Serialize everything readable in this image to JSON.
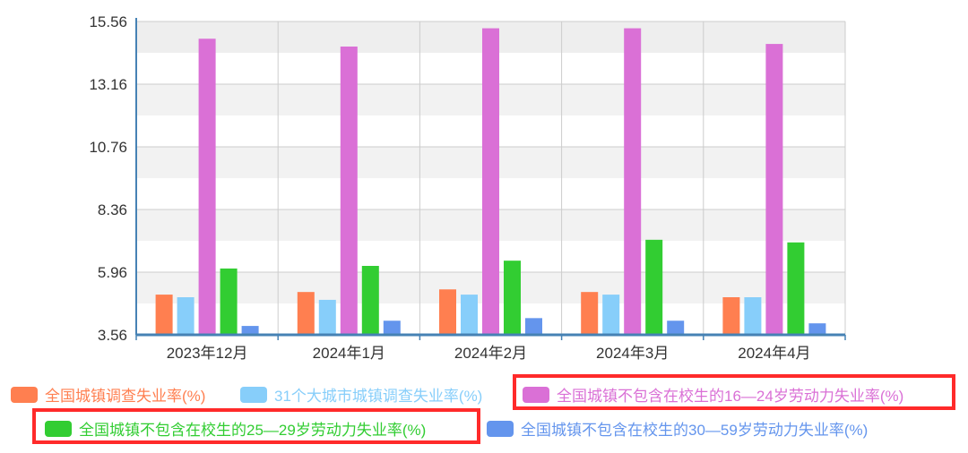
{
  "chart_data": {
    "type": "bar",
    "categories": [
      "2023年12月",
      "2024年1月",
      "2024年2月",
      "2024年3月",
      "2024年4月"
    ],
    "series": [
      {
        "name": "全国城镇调查失业率(%)",
        "color": "#ff7f50",
        "values": [
          5.1,
          5.2,
          5.3,
          5.2,
          5.0
        ]
      },
      {
        "name": "31个大城市城镇调查失业率(%)",
        "color": "#87cefa",
        "values": [
          5.0,
          4.9,
          5.1,
          5.1,
          5.0
        ]
      },
      {
        "name": "全国城镇不包含在校生的16—24岁劳动力失业率(%)",
        "color": "#da70d6",
        "values": [
          14.9,
          14.6,
          15.3,
          15.3,
          14.7
        ]
      },
      {
        "name": "全国城镇不包含在校生的25—29岁劳动力失业率(%)",
        "color": "#32cd32",
        "values": [
          6.1,
          6.2,
          6.4,
          7.2,
          7.1
        ]
      },
      {
        "name": "全国城镇不包含在校生的30—59岁劳动力失业率(%)",
        "color": "#6495ed",
        "values": [
          3.9,
          4.1,
          4.2,
          4.1,
          4.0
        ]
      }
    ],
    "y_ticks": [
      "3.56",
      "5.96",
      "8.36",
      "10.76",
      "13.16",
      "15.56"
    ],
    "ylim": [
      3.56,
      15.56
    ],
    "grid": true,
    "legend_position": "bottom",
    "highlighted_legend_items": [
      2,
      3
    ],
    "highlight_color": "#ff2a2a"
  }
}
